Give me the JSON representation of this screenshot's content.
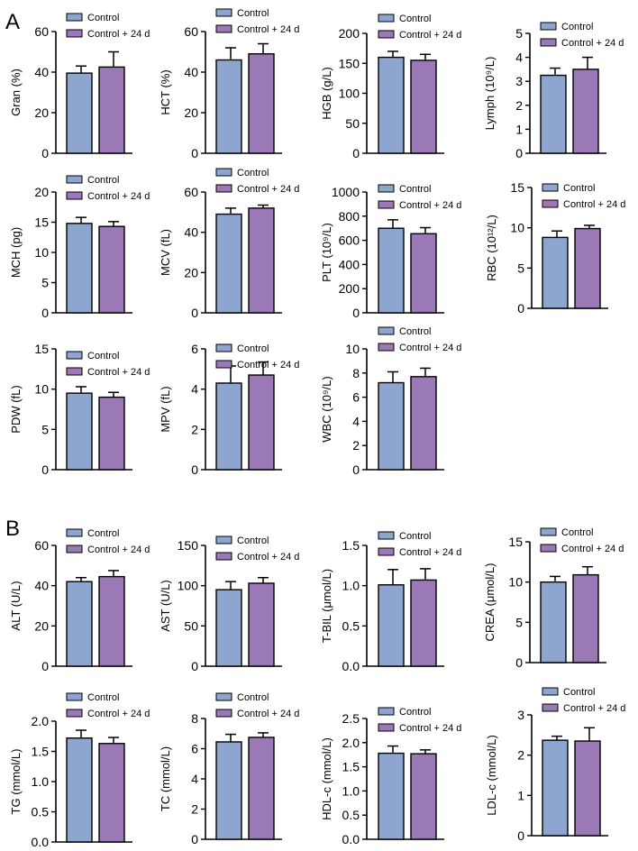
{
  "panels": [
    {
      "letter": "A"
    },
    {
      "letter": "B"
    }
  ],
  "colors": {
    "control": "#8ea6cf",
    "treated": "#9b79b7",
    "axis": "#000000"
  },
  "chart_data": [
    {
      "type": "bar",
      "panel": "A",
      "legend": [
        "Control",
        "Control + 24 d"
      ],
      "categories": [
        "Control",
        "Control + 24 d"
      ],
      "ylabel": "Gran (%)",
      "ylim": [
        0,
        60
      ],
      "yticks": [
        0,
        20,
        40,
        60
      ],
      "values": [
        39.5,
        42.5
      ],
      "errors": [
        3.5,
        7.5
      ]
    },
    {
      "type": "bar",
      "panel": "A",
      "legend": [
        "Control",
        "Control + 24 d"
      ],
      "categories": [
        "Control",
        "Control + 24 d"
      ],
      "ylabel": "HCT (%)",
      "ylim": [
        0,
        60
      ],
      "yticks": [
        0,
        20,
        40,
        60
      ],
      "values": [
        46,
        49
      ],
      "errors": [
        6,
        5
      ]
    },
    {
      "type": "bar",
      "panel": "A",
      "legend": [
        "Control",
        "Control + 24 d"
      ],
      "categories": [
        "Control",
        "Control + 24 d"
      ],
      "ylabel": "HGB (g/L)",
      "ylim": [
        0,
        200
      ],
      "yticks": [
        0,
        50,
        100,
        150,
        200
      ],
      "values": [
        160,
        155
      ],
      "errors": [
        10,
        10
      ]
    },
    {
      "type": "bar",
      "panel": "A",
      "legend": [
        "Control",
        "Control + 24 d"
      ],
      "categories": [
        "Control",
        "Control + 24 d"
      ],
      "ylabel": "Lymph (10⁹/L)",
      "ylim": [
        0,
        5
      ],
      "yticks": [
        0,
        1,
        2,
        3,
        4,
        5
      ],
      "values": [
        3.25,
        3.5
      ],
      "errors": [
        0.3,
        0.5
      ]
    },
    {
      "type": "bar",
      "panel": "A",
      "legend": [
        "Control",
        "Control + 24 d"
      ],
      "categories": [
        "Control",
        "Control + 24 d"
      ],
      "ylabel": "MCH (pg)",
      "ylim": [
        0,
        20
      ],
      "yticks": [
        0,
        5,
        10,
        15,
        20
      ],
      "values": [
        14.8,
        14.3
      ],
      "errors": [
        1,
        0.8
      ]
    },
    {
      "type": "bar",
      "panel": "A",
      "legend": [
        "Control",
        "Control + 24 d"
      ],
      "categories": [
        "Control",
        "Control + 24 d"
      ],
      "ylabel": "MCV (fL)",
      "ylim": [
        0,
        60
      ],
      "yticks": [
        0,
        20,
        40,
        60
      ],
      "values": [
        49,
        52
      ],
      "errors": [
        3,
        1.5
      ]
    },
    {
      "type": "bar",
      "panel": "A",
      "legend": [
        "Control",
        "Control + 24 d"
      ],
      "categories": [
        "Control",
        "Control + 24 d"
      ],
      "ylabel": "PLT (10⁹/L)",
      "ylim": [
        0,
        1000
      ],
      "yticks": [
        0,
        200,
        400,
        600,
        800,
        1000
      ],
      "values": [
        700,
        655
      ],
      "errors": [
        70,
        50
      ]
    },
    {
      "type": "bar",
      "panel": "A",
      "legend": [
        "Control",
        "Control + 24 d"
      ],
      "categories": [
        "Control",
        "Control + 24 d"
      ],
      "ylabel": "RBC (10¹²/L)",
      "ylim": [
        0,
        15
      ],
      "yticks": [
        0,
        5,
        10,
        15
      ],
      "values": [
        8.8,
        9.9
      ],
      "errors": [
        0.8,
        0.4
      ]
    },
    {
      "type": "bar",
      "panel": "A",
      "legend": [
        "Control",
        "Control + 24 d"
      ],
      "categories": [
        "Control",
        "Control + 24 d"
      ],
      "ylabel": "PDW (fL)",
      "ylim": [
        0,
        15
      ],
      "yticks": [
        0,
        5,
        10,
        15
      ],
      "values": [
        9.5,
        9
      ],
      "errors": [
        0.8,
        0.6
      ]
    },
    {
      "type": "bar",
      "panel": "A",
      "legend": [
        "Control",
        "Control + 24 d"
      ],
      "categories": [
        "Control",
        "Control + 24 d"
      ],
      "ylabel": "MPV (fL)",
      "ylim": [
        0,
        6
      ],
      "yticks": [
        0,
        2,
        4,
        6
      ],
      "values": [
        4.3,
        4.7
      ],
      "errors": [
        0.85,
        0.65
      ]
    },
    {
      "type": "bar",
      "panel": "A",
      "legend": [
        "Control",
        "Control + 24 d"
      ],
      "categories": [
        "Control",
        "Control + 24 d"
      ],
      "ylabel": "WBC (10⁹/L)",
      "ylim": [
        0,
        10
      ],
      "yticks": [
        0,
        2,
        4,
        6,
        8,
        10
      ],
      "values": [
        7.2,
        7.7
      ],
      "errors": [
        0.9,
        0.7
      ]
    },
    {
      "type": "bar",
      "panel": "B",
      "legend": [
        "Control",
        "Control + 24 d"
      ],
      "categories": [
        "Control",
        "Control + 24 d"
      ],
      "ylabel": "ALT (U/L)",
      "ylim": [
        0,
        60
      ],
      "yticks": [
        0,
        20,
        40,
        60
      ],
      "values": [
        42,
        44.5
      ],
      "errors": [
        2,
        3
      ]
    },
    {
      "type": "bar",
      "panel": "B",
      "legend": [
        "Control",
        "Control + 24 d"
      ],
      "categories": [
        "Control",
        "Control + 24 d"
      ],
      "ylabel": "AST (U/L)",
      "ylim": [
        0,
        150
      ],
      "yticks": [
        0,
        50,
        100,
        150
      ],
      "values": [
        95,
        103
      ],
      "errors": [
        10,
        7
      ]
    },
    {
      "type": "bar",
      "panel": "B",
      "legend": [
        "Control",
        "Control + 24 d"
      ],
      "categories": [
        "Control",
        "Control + 24 d"
      ],
      "ylabel": "T-BIL (μmol/L)",
      "ylim": [
        0,
        1.5
      ],
      "yticks": [
        "0.0",
        "0.5",
        "1.0",
        "1.5"
      ],
      "values": [
        1.01,
        1.07
      ],
      "errors": [
        0.19,
        0.14
      ]
    },
    {
      "type": "bar",
      "panel": "B",
      "legend": [
        "Control",
        "Control + 24 d"
      ],
      "categories": [
        "Control",
        "Control + 24 d"
      ],
      "ylabel": "CREA (μmol/L)",
      "ylim": [
        0,
        15
      ],
      "yticks": [
        0,
        5,
        10,
        15
      ],
      "values": [
        10,
        10.9
      ],
      "errors": [
        0.7,
        1
      ]
    },
    {
      "type": "bar",
      "panel": "B",
      "legend": [
        "Control",
        "Control + 24 d"
      ],
      "categories": [
        "Control",
        "Control + 24 d"
      ],
      "ylabel": "TG (mmol/L)",
      "ylim": [
        0,
        2
      ],
      "yticks": [
        "0.0",
        "0.5",
        "1.0",
        "1.5",
        "2.0"
      ],
      "values": [
        1.72,
        1.63
      ],
      "errors": [
        0.13,
        0.1
      ]
    },
    {
      "type": "bar",
      "panel": "B",
      "legend": [
        "Control",
        "Control + 24 d"
      ],
      "categories": [
        "Control",
        "Control + 24 d"
      ],
      "ylabel": "TC (mmol/L)",
      "ylim": [
        0,
        8
      ],
      "yticks": [
        0,
        2,
        4,
        6,
        8
      ],
      "values": [
        6.45,
        6.75
      ],
      "errors": [
        0.5,
        0.3
      ]
    },
    {
      "type": "bar",
      "panel": "B",
      "legend": [
        "Control",
        "Control + 24 d"
      ],
      "categories": [
        "Control",
        "Control + 24 d"
      ],
      "ylabel": "HDL-c (mmol/L)",
      "ylim": [
        0,
        2.5
      ],
      "yticks": [
        "0.0",
        "0.5",
        "1.0",
        "1.5",
        "2.0",
        "2.5"
      ],
      "values": [
        1.78,
        1.77
      ],
      "errors": [
        0.15,
        0.08
      ]
    },
    {
      "type": "bar",
      "panel": "B",
      "legend": [
        "Control",
        "Control + 24 d"
      ],
      "categories": [
        "Control",
        "Control + 24 d"
      ],
      "ylabel": "LDL-c (mmol/L)",
      "ylim": [
        0,
        3
      ],
      "yticks": [
        0,
        1,
        2,
        3
      ],
      "values": [
        2.37,
        2.35
      ],
      "errors": [
        0.1,
        0.33
      ]
    }
  ]
}
